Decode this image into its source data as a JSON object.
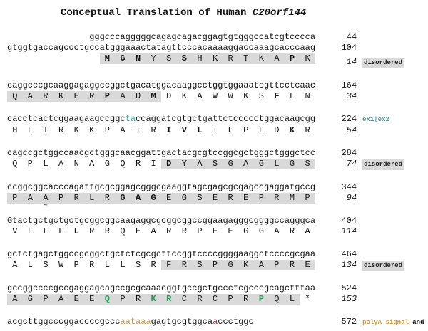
{
  "title": {
    "prefix": "Conceptual Translation of Human ",
    "gene": "C20orf144"
  },
  "colors": {
    "teal": "#3FA6A6",
    "green": "#2E9E5B",
    "orange": "#D49A42",
    "red": "#C23030",
    "black": "#151515",
    "highlight": "#d9d9d9"
  },
  "sections": [
    {
      "dna": [
        {
          "segs": [
            {
              "t": "gggcccagggggcagagcagacggagtgtgggccatcgtcccca"
            }
          ],
          "n": "44"
        },
        {
          "segs": [
            {
              "t": "gtggtgaccagccctgccatgggaaactatagttcccacaaaaggaccaaagcacccaag"
            }
          ],
          "n": "104"
        }
      ],
      "aa": {
        "seq": "MGNYSSHKRTKAPK",
        "off": 18,
        "bold": [
          0,
          1,
          2,
          5,
          12
        ],
        "hl": [
          0,
          13
        ],
        "n": "14",
        "label": {
          "chip": true,
          "segs": [
            {
              "t": "disordered"
            }
          ]
        }
      }
    },
    {
      "dna": [
        {
          "segs": [
            {
              "t": "caggcccgcaaggagaggccggctgacatggacaaggcctggtggaaatcgttcctcaac"
            }
          ],
          "n": "164"
        }
      ],
      "aa": {
        "seq": "QARKERPADMDKAWWKSFLN",
        "off": 0,
        "bold": [
          6,
          9,
          17
        ],
        "hl": [
          0,
          9
        ],
        "n": "34"
      }
    },
    {
      "dna": [
        {
          "segs": [
            {
              "t": "cacctcactcggaagaagccggc"
            },
            {
              "t": "ta",
              "c": "teal"
            },
            {
              "t": "ccaggatcgtgctgattctccccctggacaagcgg"
            }
          ],
          "n": "224",
          "label": {
            "segs": [
              {
                "t": "ex1|ex2",
                "c": "teal"
              }
            ]
          }
        }
      ],
      "aa": {
        "seq": "HLTRKKPATRIVLILPLDKR",
        "off": 0,
        "bold": [
          10,
          11,
          12,
          18
        ],
        "n": "54"
      }
    },
    {
      "dna": [
        {
          "segs": [
            {
              "t": "cagccgctggccaacgctgggcaacggattgactacgcgtccggcgctgggctgggctcc"
            }
          ],
          "n": "284"
        }
      ],
      "aa": {
        "seq": "QPLANAGQRIDYASGAGLGS",
        "off": 0,
        "bold": [
          10
        ],
        "hl": [
          10,
          19
        ],
        "n": "74",
        "label": {
          "chip": true,
          "segs": [
            {
              "t": "disordered"
            }
          ]
        }
      }
    },
    {
      "dna": [
        {
          "segs": [
            {
              "t": "ccggcggcacccagattgcgcggagcgggcgaaggtagcgagcgcgagccgaggatgccg"
            }
          ],
          "n": "344"
        }
      ],
      "aa": {
        "seq": "PAAPRLRGAGEGSEREPRMP",
        "off": 0,
        "bold": [
          7,
          8,
          9
        ],
        "hl": [
          0,
          19
        ],
        "mark": [
          2
        ],
        "n": "94"
      }
    },
    {
      "dna": [
        {
          "segs": [
            {
              "t": "Gtactgctgctgctgcggcggcaagaggcgcggcggccggaagagggcggggccagggca"
            }
          ],
          "n": "404"
        }
      ],
      "aa": {
        "seq": "VLLLLRRQEARRPEEGGARA",
        "off": 0,
        "bold": [
          4
        ],
        "n": "114"
      }
    },
    {
      "dna": [
        {
          "segs": [
            {
              "t": "gctctgagctggccgcggctgctctcgcgcttccggtccccggggaaggctccccgcgaa"
            }
          ],
          "n": "464"
        }
      ],
      "aa": {
        "seq": "ALSWPRLLSRFRSPGKAPRE",
        "off": 0,
        "hl": [
          10,
          19
        ],
        "n": "134",
        "label": {
          "chip": true,
          "segs": [
            {
              "t": "disordered"
            }
          ]
        }
      }
    },
    {
      "dna": [
        {
          "segs": [
            {
              "t": "gccggccccgccgaggagcagccgcgcaaacggtgccgctgccctcgcccgcagctttaa"
            }
          ],
          "n": "524"
        }
      ],
      "aa": {
        "seq": "AGPAEEQPRKRCRCPRPQL*",
        "off": 0,
        "green": [
          6,
          9,
          10,
          16
        ],
        "hl": [
          0,
          18
        ],
        "n": "153"
      }
    },
    {
      "dna": [
        {
          "segs": [
            {
              "t": "acgcttggcccggaccccgccc"
            },
            {
              "t": "aataaa",
              "c": "orange"
            },
            {
              "t": "gagtgcgtggca"
            },
            {
              "t": "a",
              "c": "red"
            },
            {
              "t": "ccctggc"
            }
          ],
          "n": "572",
          "align": "left",
          "label": {
            "segs": [
              {
                "t": "polyA signal ",
                "c": "orange"
              },
              {
                "t": "and ",
                "c": "black"
              },
              {
                "t": "site",
                "c": "red"
              }
            ]
          }
        }
      ]
    }
  ]
}
